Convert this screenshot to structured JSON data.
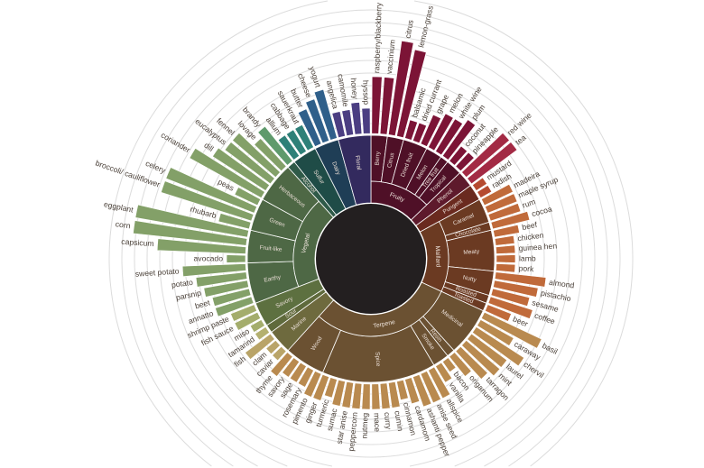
{
  "chart_data": {
    "type": "bar",
    "polar": true,
    "grid": true,
    "center_color": "#231f20",
    "categories": [
      {
        "name": "Fruity",
        "color": "#4f1027",
        "leaf_color": "#7c1436",
        "children": [
          {
            "name": "Berry",
            "leaves": [
              {
                "name": "raspberry/blackberry",
                "value": 4.5
              },
              {
                "name": "vaccinium",
                "value": 4.5
              }
            ]
          },
          {
            "name": "Citrus",
            "leaves": [
              {
                "name": "citrus",
                "value": 7.5
              },
              {
                "name": "lemon-grass",
                "value": 7
              }
            ]
          },
          {
            "name": "Dried fruit",
            "leaves": [
              {
                "name": "balsamic",
                "value": 1.5
              },
              {
                "name": "dried currant",
                "value": 1.5
              },
              {
                "name": "grape",
                "value": 2.5
              }
            ]
          },
          {
            "name": "Melon",
            "leaves": [
              {
                "name": "melon",
                "value": 3
              },
              {
                "name": "white wine",
                "value": 3
              }
            ]
          },
          {
            "name": "Tree fruit",
            "leaves": [
              {
                "name": "plum",
                "value": 3.5
              }
            ]
          },
          {
            "name": "Tropical",
            "leaves": [
              {
                "name": "coconut",
                "value": 1.5
              },
              {
                "name": "pineapple",
                "value": 1.5
              }
            ]
          }
        ]
      },
      {
        "name": "Phenol",
        "color": "#5e1a2c",
        "leaf_color": "#a32a44",
        "leaves": [
          {
            "name": "red wine",
            "value": 4.5
          },
          {
            "name": "tea",
            "value": 4.5
          }
        ]
      },
      {
        "name": "Pungent",
        "color": "#6a2a1f",
        "leaf_color": "#b54a30",
        "leaves": [
          {
            "name": "mustard",
            "value": 1
          },
          {
            "name": "radish",
            "value": 1
          }
        ]
      },
      {
        "name": "Maillard",
        "color": "#6b3a22",
        "leaf_color": "#c06a3a",
        "children": [
          {
            "name": "Caramel",
            "leaves": [
              {
                "name": "madeira",
                "value": 2.5
              },
              {
                "name": "maple syrup",
                "value": 2.5
              },
              {
                "name": "rum",
                "value": 2.5
              }
            ]
          },
          {
            "name": "Chocolate",
            "leaves": [
              {
                "name": "cocoa",
                "value": 3
              }
            ]
          },
          {
            "name": "Meaty",
            "leaves": [
              {
                "name": "beef",
                "value": 2
              },
              {
                "name": "chicken",
                "value": 1.5
              },
              {
                "name": "guinea hen",
                "value": 1.5
              },
              {
                "name": "lamb",
                "value": 1.5
              },
              {
                "name": "pork",
                "value": 1.5
              }
            ]
          },
          {
            "name": "Nutty",
            "leaves": [
              {
                "name": "almond",
                "value": 4
              },
              {
                "name": "pistachio",
                "value": 3.5
              },
              {
                "name": "sesame",
                "value": 3
              }
            ]
          },
          {
            "name": "Roasted",
            "leaves": [
              {
                "name": "coffee",
                "value": 3.5
              }
            ]
          },
          {
            "name": "Toasted",
            "leaves": [
              {
                "name": "beer",
                "value": 2
              }
            ]
          }
        ]
      },
      {
        "name": "Terpene",
        "color": "#6b5132",
        "leaf_color": "#b98a4f",
        "children": [
          {
            "name": "Medicinal",
            "leaves": [
              {
                "name": "basil",
                "value": 5
              },
              {
                "name": "caraway",
                "value": 3
              },
              {
                "name": "chervil",
                "value": 4.5
              },
              {
                "name": "laurel",
                "value": 3.5
              },
              {
                "name": "mint",
                "value": 3.5
              },
              {
                "name": "tarragon",
                "value": 3
              }
            ]
          },
          {
            "name": "Resin",
            "leaves": [
              {
                "name": "origanum",
                "value": 2
              }
            ]
          },
          {
            "name": "Smoke",
            "leaves": [
              {
                "name": "bacon",
                "value": 1
              },
              {
                "name": "vanilla",
                "value": 1.5
              }
            ]
          },
          {
            "name": "Spice",
            "leaves": [
              {
                "name": "allspice",
                "value": 2.5
              },
              {
                "name": "anise seed",
                "value": 2.5
              },
              {
                "name": "ashanti pepper",
                "value": 2.5
              },
              {
                "name": "cardamom",
                "value": 2
              },
              {
                "name": "cinnamon",
                "value": 1.5
              },
              {
                "name": "cumin",
                "value": 2
              },
              {
                "name": "curry",
                "value": 2
              },
              {
                "name": "mace",
                "value": 2
              },
              {
                "name": "nutmeg",
                "value": 2
              },
              {
                "name": "peppercorn",
                "value": 2
              },
              {
                "name": "star anise",
                "value": 2
              },
              {
                "name": "sumac",
                "value": 2
              },
              {
                "name": "turmeric",
                "value": 1.5
              },
              {
                "name": "ginger",
                "value": 2
              }
            ]
          },
          {
            "name": "Wood",
            "leaves": [
              {
                "name": "pimento",
                "value": 2
              },
              {
                "name": "rosemary",
                "value": 1.5
              },
              {
                "name": "sage",
                "value": 1.5
              },
              {
                "name": "savory",
                "value": 1.5
              },
              {
                "name": "thyme",
                "value": 2
              }
            ]
          }
        ]
      },
      {
        "name": "Marine",
        "color": "#6e6a3e",
        "leaf_color": "#b9a468",
        "leaves": [
          {
            "name": "caviar",
            "value": 1
          },
          {
            "name": "clam",
            "value": 1
          },
          {
            "name": "fish",
            "value": 2.5
          }
        ]
      },
      {
        "name": "Sour",
        "color": "#5f6a3c",
        "leaf_color": "#b4b070",
        "leaves": [
          {
            "name": "tamarind",
            "value": 1
          }
        ]
      },
      {
        "name": "Savory",
        "color": "#5d7040",
        "leaf_color": "#a4ad6c",
        "leaves": [
          {
            "name": "miso",
            "value": 1
          },
          {
            "name": "fish sauce",
            "value": 2
          },
          {
            "name": "shrimp paste",
            "value": 2
          }
        ]
      },
      {
        "name": "Vegetal",
        "color": "#4e6845",
        "leaf_color": "#83a068",
        "children": [
          {
            "name": "Earthy",
            "leaves": [
              {
                "name": "annatto",
                "value": 3
              },
              {
                "name": "beet",
                "value": 3
              },
              {
                "name": "parsnip",
                "value": 3.5
              },
              {
                "name": "potato",
                "value": 4
              },
              {
                "name": "sweet potato",
                "value": 5
              }
            ]
          },
          {
            "name": "Fruit-like",
            "leaves": [
              {
                "name": "avocado",
                "value": 1.5
              },
              {
                "name": "capsicum",
                "value": 7
              },
              {
                "name": "corn",
                "value": 9
              },
              {
                "name": "eggplant",
                "value": 9
              }
            ]
          },
          {
            "name": "Green",
            "leaves": [
              {
                "name": "rhubarb",
                "value": 2.5
              },
              {
                "name": "broccoli/ cauliflower",
                "value": 7.5
              },
              {
                "name": "celery",
                "value": 7.5
              },
              {
                "name": "peas",
                "value": 2
              }
            ]
          },
          {
            "name": "Herbaceous",
            "leaves": [
              {
                "name": "coriander",
                "value": 6.5
              },
              {
                "name": "dill",
                "value": 5
              },
              {
                "name": "eucalyptus",
                "value": 4.5
              },
              {
                "name": "fennel",
                "value": 4.5
              },
              {
                "name": "lovage",
                "value": 3
              }
            ]
          }
        ]
      },
      {
        "name": "Alcohol",
        "color": "#2f5a48",
        "leaf_color": "#5f9a6c",
        "leaves": [
          {
            "name": "brandy",
            "value": 3.5
          }
        ]
      },
      {
        "name": "Sulfur",
        "color": "#1f4c47",
        "leaf_color": "#2e8078",
        "leaves": [
          {
            "name": "allium",
            "value": 2
          },
          {
            "name": "cabbage",
            "value": 2
          },
          {
            "name": "sauerkraut",
            "value": 2
          }
        ]
      },
      {
        "name": "Dairy",
        "color": "#1f3e56",
        "leaf_color": "#2f5f8a",
        "leaves": [
          {
            "name": "butter",
            "value": 3
          },
          {
            "name": "cheese",
            "value": 3.5
          },
          {
            "name": "yogurt",
            "value": 4
          }
        ]
      },
      {
        "name": "Floral",
        "color": "#332a5e",
        "leaf_color": "#4b3e82",
        "leaves": [
          {
            "name": "angelica",
            "value": 2
          },
          {
            "name": "camomile",
            "value": 2
          },
          {
            "name": "honey",
            "value": 2.5
          },
          {
            "name": "hyssop",
            "value": 2
          }
        ]
      }
    ]
  }
}
